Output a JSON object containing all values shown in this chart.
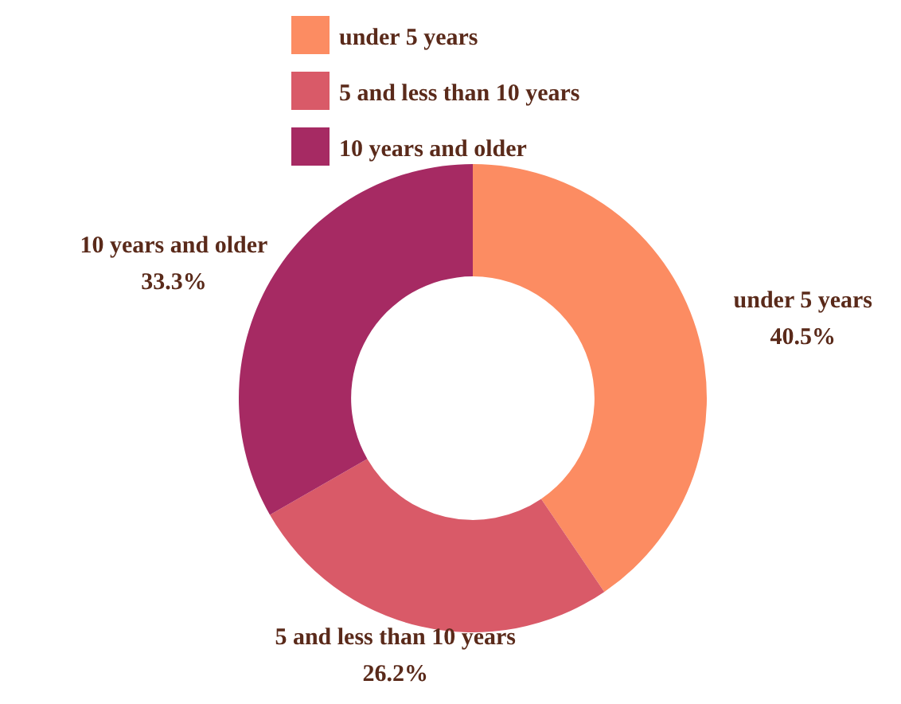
{
  "chart_data": {
    "type": "donut",
    "categories": [
      "under 5 years",
      "5 and less than 10 years",
      "10 years and older"
    ],
    "values": [
      40.5,
      26.2,
      33.3
    ],
    "colors": [
      "#fc8c62",
      "#d95a68",
      "#a62a63"
    ],
    "value_labels": [
      "40.5%",
      "26.2%",
      "33.3%"
    ],
    "legend": "top"
  }
}
